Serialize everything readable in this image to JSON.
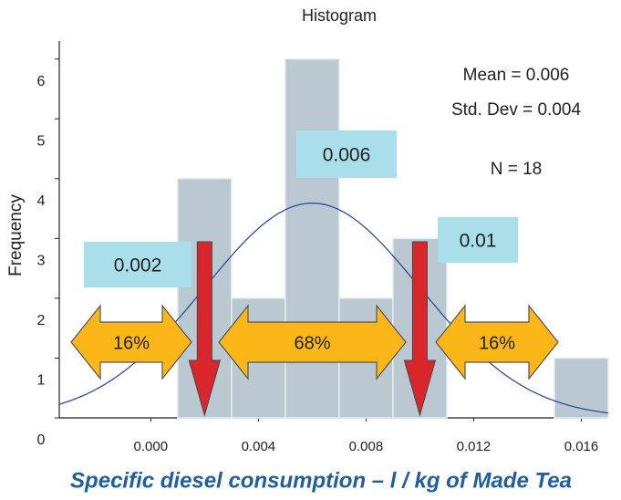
{
  "chart_data": {
    "type": "histogram",
    "title": "Histogram",
    "xlabel": "Specific diesel consumption – l / kg of Made Tea",
    "ylabel": "Frequency",
    "bins": [
      0.001,
      0.003,
      0.005,
      0.007,
      0.009,
      0.011,
      0.013,
      0.015,
      0.017
    ],
    "values": [
      4,
      2,
      6,
      2,
      3,
      0,
      0,
      1
    ],
    "color": "#b9c8d1",
    "curve_color": "#2f4b9c",
    "xlim": [
      -0.0034,
      0.017
    ],
    "ylim": [
      0,
      6.3
    ],
    "xticks": [
      {
        "value": 0,
        "label": "0.000"
      },
      {
        "value": 0.004,
        "label": "0.004"
      },
      {
        "value": 0.008,
        "label": "0.008"
      },
      {
        "value": 0.012,
        "label": "0.012"
      },
      {
        "value": 0.016,
        "label": "0.016"
      }
    ],
    "yticks": [
      0,
      1,
      2,
      3,
      4,
      5,
      6
    ],
    "stats": {
      "mean": {
        "value": 0.006,
        "label": "Mean = 0.006"
      },
      "std": {
        "value": 0.004,
        "label": "Std. Dev = 0.004"
      },
      "n": {
        "value": 18,
        "label": "N = 18"
      }
    },
    "markers": [
      {
        "value": 0.002,
        "label": "0.002"
      },
      {
        "value": 0.006,
        "label": "0.006"
      },
      {
        "value": 0.01,
        "label": "0.01"
      }
    ],
    "regions": [
      {
        "value": 16,
        "label": "16%"
      },
      {
        "value": 68,
        "label": "68%"
      },
      {
        "value": 16,
        "label": "16%"
      }
    ]
  }
}
